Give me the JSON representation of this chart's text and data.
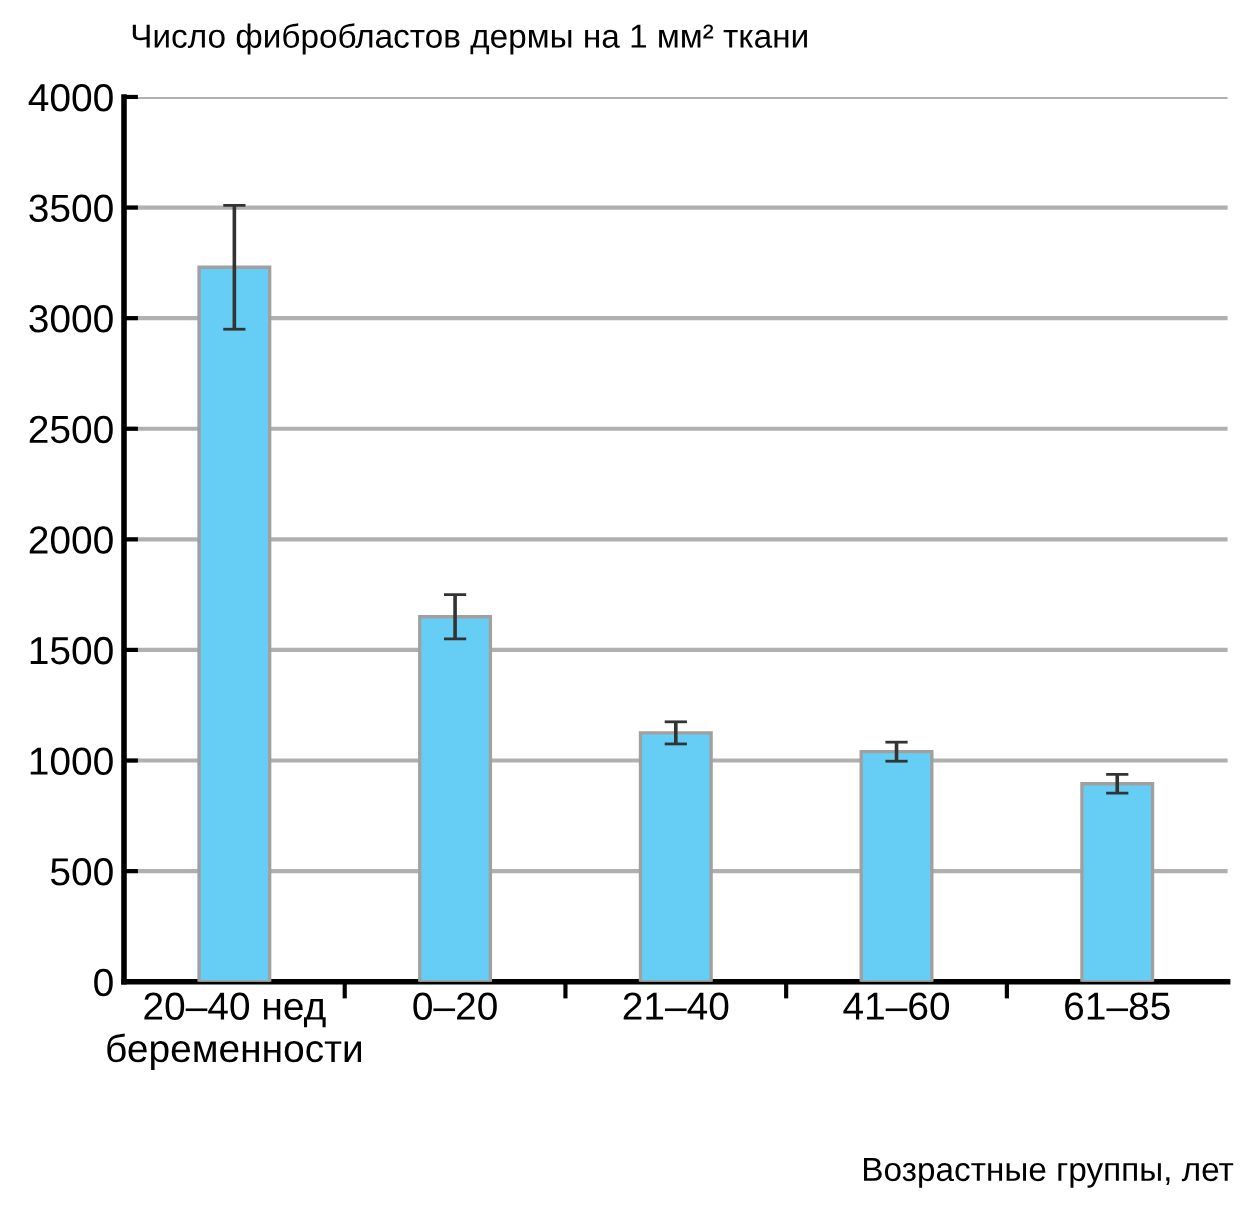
{
  "chart_data": {
    "type": "bar",
    "ylabel": "Число фибробластов дермы на 1 мм² ткани",
    "xlabel": "Возрастные группы, лет",
    "categories": [
      "20–40 нед\nбеременности",
      "0–20",
      "21–40",
      "41–60",
      "61–85"
    ],
    "values": [
      3230,
      1650,
      1125,
      1040,
      895
    ],
    "errors": [
      280,
      100,
      50,
      43,
      42
    ],
    "color": "#66cef5",
    "ylim": [
      0,
      4000
    ],
    "yticks": [
      0,
      500,
      1000,
      1500,
      2000,
      2500,
      3000,
      3500,
      4000
    ],
    "grid": "y"
  }
}
